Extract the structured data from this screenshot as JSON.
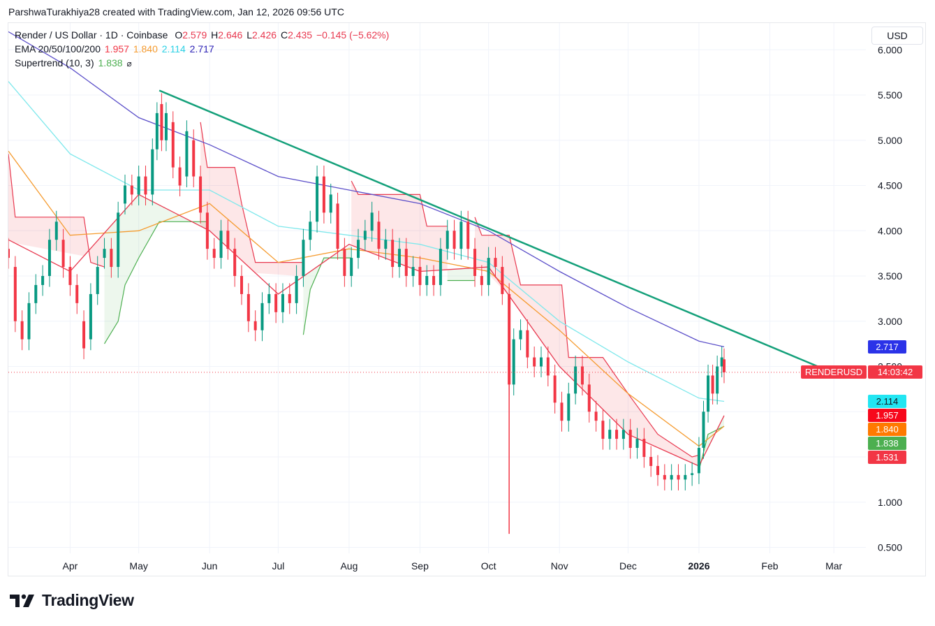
{
  "credit": "ParshwaTurakhiya28 created with TradingView.com, Jan 12, 2026 09:56 UTC",
  "legend": {
    "symbol": "Render / US Dollar · 1D · Coinbase",
    "o_label": "O",
    "o_value": "2.579",
    "h_label": "H",
    "h_value": "2.646",
    "l_label": "L",
    "l_value": "2.426",
    "c_label": "C",
    "c_value": "2.435",
    "change": "−0.145 (−5.62%)",
    "ema_label": "EMA 20/50/100/200",
    "ema20": "1.957",
    "ema50": "1.840",
    "ema100": "2.114",
    "ema200": "2.717",
    "supertrend_label": "Supertrend (10, 3)",
    "supertrend_value": "1.838",
    "supertrend_icon": "circle-slash-icon"
  },
  "currency_button": "USD",
  "price_tags": {
    "ema200": "2.717",
    "symbol": "RENDERUSD",
    "countdown": "14:03:42",
    "ema100": "2.114",
    "ema20": "1.957",
    "ema50": "1.840",
    "supertrend": "1.838",
    "supertrend_down": "1.531"
  },
  "colors": {
    "up": "#089981",
    "down": "#f23645",
    "ema20": "#e8384f",
    "ema50": "#f59b2f",
    "ema100": "#7fe8ec",
    "ema200": "#5b4fc9",
    "trendline": "#14a07a",
    "st_up": "#4caf50",
    "st_down": "#e8384f",
    "tag_ema200": "#2b33e8",
    "tag_cyan": "#22e6f2",
    "tag_red": "#f7081c",
    "tag_orange": "#ff7a00",
    "tag_green": "#4caf50",
    "tag_st_down": "#f23645"
  },
  "brand": "TradingView",
  "chart_data": {
    "type": "candlestick",
    "title": "Render / US Dollar · 1D · Coinbase",
    "x_ticks": [
      "Apr",
      "May",
      "Jun",
      "Jul",
      "Aug",
      "Sep",
      "Oct",
      "Nov",
      "Dec",
      "2026",
      "Feb",
      "Mar"
    ],
    "y_ticks": [
      "0.500",
      "1.000",
      "1.500",
      "2.000",
      "2.500",
      "3.000",
      "3.500",
      "4.000",
      "4.500",
      "5.000",
      "5.500",
      "6.000"
    ],
    "ylim": [
      0.5,
      6.0
    ],
    "last_price": 2.435,
    "grid": true,
    "x_start": "2025-03-05",
    "x_end": "2026-03-15",
    "candles": [
      [
        "2025-03-05",
        3.8,
        3.7
      ],
      [
        "2025-03-08",
        3.6,
        3.0
      ],
      [
        "2025-03-11",
        3.0,
        2.8
      ],
      [
        "2025-03-14",
        2.8,
        3.2
      ],
      [
        "2025-03-17",
        3.2,
        3.4
      ],
      [
        "2025-03-20",
        3.4,
        3.5
      ],
      [
        "2025-03-23",
        3.5,
        3.9
      ],
      [
        "2025-03-26",
        3.9,
        4.1
      ],
      [
        "2025-03-29",
        3.9,
        3.6
      ],
      [
        "2025-04-01",
        3.6,
        3.4
      ],
      [
        "2025-04-04",
        3.4,
        3.2
      ],
      [
        "2025-04-07",
        3.0,
        2.7
      ],
      [
        "2025-04-10",
        2.8,
        3.3
      ],
      [
        "2025-04-13",
        3.3,
        3.6
      ],
      [
        "2025-04-16",
        3.7,
        3.8
      ],
      [
        "2025-04-19",
        3.8,
        3.6
      ],
      [
        "2025-04-22",
        3.6,
        4.2
      ],
      [
        "2025-04-25",
        4.3,
        4.5
      ],
      [
        "2025-04-28",
        4.5,
        4.4
      ],
      [
        "2025-05-01",
        4.4,
        4.6
      ],
      [
        "2025-05-04",
        4.6,
        4.4
      ],
      [
        "2025-05-07",
        4.4,
        4.9
      ],
      [
        "2025-05-09",
        4.9,
        5.3
      ],
      [
        "2025-05-11",
        5.4,
        5.0
      ],
      [
        "2025-05-13",
        5.0,
        5.3
      ],
      [
        "2025-05-16",
        5.2,
        4.7
      ],
      [
        "2025-05-19",
        4.7,
        4.5
      ],
      [
        "2025-05-22",
        4.6,
        5.1
      ],
      [
        "2025-05-25",
        5.0,
        4.6
      ],
      [
        "2025-05-28",
        4.6,
        4.2
      ],
      [
        "2025-05-31",
        4.2,
        3.8
      ],
      [
        "2025-06-03",
        3.8,
        3.7
      ],
      [
        "2025-06-06",
        3.7,
        4.0
      ],
      [
        "2025-06-09",
        4.0,
        3.8
      ],
      [
        "2025-06-12",
        3.8,
        3.5
      ],
      [
        "2025-06-15",
        3.5,
        3.3
      ],
      [
        "2025-06-18",
        3.3,
        3.0
      ],
      [
        "2025-06-21",
        3.0,
        2.9
      ],
      [
        "2025-06-24",
        2.9,
        3.2
      ],
      [
        "2025-06-27",
        3.2,
        3.3
      ],
      [
        "2025-06-30",
        3.3,
        3.1
      ],
      [
        "2025-07-03",
        3.1,
        3.3
      ],
      [
        "2025-07-06",
        3.3,
        3.2
      ],
      [
        "2025-07-09",
        3.2,
        3.5
      ],
      [
        "2025-07-12",
        3.5,
        3.9
      ],
      [
        "2025-07-15",
        3.9,
        4.1
      ],
      [
        "2025-07-18",
        4.1,
        4.6
      ],
      [
        "2025-07-21",
        4.6,
        4.2
      ],
      [
        "2025-07-24",
        4.2,
        4.4
      ],
      [
        "2025-07-27",
        4.3,
        3.8
      ],
      [
        "2025-07-30",
        3.8,
        3.5
      ],
      [
        "2025-08-02",
        3.5,
        3.7
      ],
      [
        "2025-08-05",
        3.7,
        3.9
      ],
      [
        "2025-08-08",
        3.9,
        4.0
      ],
      [
        "2025-08-11",
        4.0,
        4.2
      ],
      [
        "2025-08-14",
        4.1,
        3.8
      ],
      [
        "2025-08-17",
        3.8,
        3.9
      ],
      [
        "2025-08-20",
        3.9,
        3.6
      ],
      [
        "2025-08-23",
        3.6,
        3.8
      ],
      [
        "2025-08-26",
        3.8,
        3.5
      ],
      [
        "2025-08-29",
        3.5,
        3.6
      ],
      [
        "2025-09-01",
        3.6,
        3.4
      ],
      [
        "2025-09-04",
        3.4,
        3.5
      ],
      [
        "2025-09-07",
        3.5,
        3.4
      ],
      [
        "2025-09-10",
        3.4,
        3.8
      ],
      [
        "2025-09-13",
        3.8,
        4.0
      ],
      [
        "2025-09-16",
        4.0,
        3.8
      ],
      [
        "2025-09-19",
        3.8,
        4.1
      ],
      [
        "2025-09-22",
        4.1,
        3.8
      ],
      [
        "2025-09-25",
        3.8,
        3.5
      ],
      [
        "2025-09-28",
        3.5,
        3.4
      ],
      [
        "2025-10-01",
        3.4,
        3.7
      ],
      [
        "2025-10-04",
        3.7,
        3.6
      ],
      [
        "2025-10-07",
        3.6,
        3.3
      ],
      [
        "2025-10-10",
        3.3,
        2.3
      ],
      [
        "2025-10-12",
        2.3,
        2.8
      ],
      [
        "2025-10-15",
        2.8,
        2.9
      ],
      [
        "2025-10-18",
        2.9,
        2.6
      ],
      [
        "2025-10-21",
        2.6,
        2.5
      ],
      [
        "2025-10-24",
        2.5,
        2.6
      ],
      [
        "2025-10-27",
        2.6,
        2.4
      ],
      [
        "2025-10-30",
        2.4,
        2.1
      ],
      [
        "2025-11-02",
        2.1,
        1.9
      ],
      [
        "2025-11-05",
        1.9,
        2.2
      ],
      [
        "2025-11-08",
        2.2,
        2.5
      ],
      [
        "2025-11-11",
        2.5,
        2.3
      ],
      [
        "2025-11-14",
        2.3,
        2.0
      ],
      [
        "2025-11-17",
        2.0,
        1.9
      ],
      [
        "2025-11-20",
        1.9,
        1.7
      ],
      [
        "2025-11-23",
        1.7,
        1.8
      ],
      [
        "2025-11-26",
        1.8,
        1.7
      ],
      [
        "2025-11-29",
        1.7,
        1.8
      ],
      [
        "2025-12-02",
        1.8,
        1.6
      ],
      [
        "2025-12-05",
        1.6,
        1.7
      ],
      [
        "2025-12-08",
        1.7,
        1.5
      ],
      [
        "2025-12-11",
        1.5,
        1.4
      ],
      [
        "2025-12-14",
        1.4,
        1.3
      ],
      [
        "2025-12-17",
        1.3,
        1.25
      ],
      [
        "2025-12-20",
        1.25,
        1.3
      ],
      [
        "2025-12-23",
        1.3,
        1.25
      ],
      [
        "2025-12-26",
        1.25,
        1.3
      ],
      [
        "2025-12-29",
        1.3,
        1.32
      ],
      [
        "2026-01-01",
        1.32,
        1.6
      ],
      [
        "2026-01-03",
        1.6,
        2.0
      ],
      [
        "2026-01-05",
        2.0,
        2.4
      ],
      [
        "2026-01-07",
        2.4,
        2.2
      ],
      [
        "2026-01-09",
        2.2,
        2.5
      ],
      [
        "2026-01-11",
        2.5,
        2.6
      ],
      [
        "2026-01-12",
        2.579,
        2.435
      ]
    ],
    "series": [
      {
        "name": "EMA 200",
        "values": [
          [
            "2025-03-05",
            6.2
          ],
          [
            "2025-04-01",
            5.8
          ],
          [
            "2025-05-01",
            5.25
          ],
          [
            "2025-06-01",
            4.95
          ],
          [
            "2025-07-01",
            4.6
          ],
          [
            "2025-08-01",
            4.45
          ],
          [
            "2025-09-01",
            4.3
          ],
          [
            "2025-10-01",
            4.0
          ],
          [
            "2025-11-01",
            3.55
          ],
          [
            "2025-12-01",
            3.15
          ],
          [
            "2026-01-01",
            2.78
          ],
          [
            "2026-01-12",
            2.717
          ]
        ]
      },
      {
        "name": "EMA 100",
        "values": [
          [
            "2025-03-05",
            5.65
          ],
          [
            "2025-04-01",
            4.85
          ],
          [
            "2025-05-01",
            4.45
          ],
          [
            "2025-06-01",
            4.45
          ],
          [
            "2025-07-01",
            4.05
          ],
          [
            "2025-08-01",
            3.95
          ],
          [
            "2025-09-01",
            3.85
          ],
          [
            "2025-10-01",
            3.65
          ],
          [
            "2025-11-01",
            3.0
          ],
          [
            "2025-12-01",
            2.55
          ],
          [
            "2026-01-01",
            2.15
          ],
          [
            "2026-01-12",
            2.114
          ]
        ]
      },
      {
        "name": "EMA 50",
        "values": [
          [
            "2025-03-05",
            4.88
          ],
          [
            "2025-04-01",
            3.95
          ],
          [
            "2025-05-01",
            4.0
          ],
          [
            "2025-06-01",
            4.3
          ],
          [
            "2025-07-01",
            3.65
          ],
          [
            "2025-08-01",
            3.8
          ],
          [
            "2025-09-01",
            3.7
          ],
          [
            "2025-10-01",
            3.55
          ],
          [
            "2025-11-01",
            2.9
          ],
          [
            "2025-12-01",
            2.2
          ],
          [
            "2026-01-01",
            1.62
          ],
          [
            "2026-01-12",
            1.84
          ]
        ]
      },
      {
        "name": "EMA 20",
        "values": [
          [
            "2025-03-05",
            3.9
          ],
          [
            "2025-04-01",
            3.55
          ],
          [
            "2025-05-01",
            4.4
          ],
          [
            "2025-06-01",
            4.0
          ],
          [
            "2025-07-01",
            3.3
          ],
          [
            "2025-08-01",
            3.85
          ],
          [
            "2025-09-01",
            3.55
          ],
          [
            "2025-10-01",
            3.6
          ],
          [
            "2025-11-01",
            2.5
          ],
          [
            "2025-12-01",
            1.75
          ],
          [
            "2026-01-01",
            1.4
          ],
          [
            "2026-01-12",
            1.957
          ]
        ]
      }
    ],
    "supertrend": [
      {
        "dir": "down",
        "values": [
          [
            "2025-03-05",
            4.85
          ],
          [
            "2025-03-08",
            4.15
          ],
          [
            "2025-04-07",
            4.15
          ],
          [
            "2025-04-10",
            3.65
          ],
          [
            "2025-04-16",
            3.6
          ]
        ]
      },
      {
        "dir": "up",
        "values": [
          [
            "2025-04-16",
            2.75
          ],
          [
            "2025-04-22",
            3.0
          ],
          [
            "2025-04-25",
            3.4
          ],
          [
            "2025-05-01",
            3.7
          ],
          [
            "2025-05-10",
            4.1
          ],
          [
            "2025-05-31",
            4.1
          ]
        ]
      },
      {
        "dir": "down",
        "values": [
          [
            "2025-05-28",
            5.2
          ],
          [
            "2025-05-31",
            4.7
          ],
          [
            "2025-06-12",
            4.7
          ],
          [
            "2025-06-15",
            4.3
          ],
          [
            "2025-06-21",
            3.65
          ],
          [
            "2025-07-12",
            3.65
          ]
        ]
      },
      {
        "dir": "up",
        "values": [
          [
            "2025-07-12",
            2.85
          ],
          [
            "2025-07-15",
            3.35
          ],
          [
            "2025-07-21",
            3.7
          ],
          [
            "2025-08-02",
            3.7
          ]
        ]
      },
      {
        "dir": "down",
        "values": [
          [
            "2025-08-02",
            4.55
          ],
          [
            "2025-08-05",
            4.4
          ],
          [
            "2025-09-01",
            4.4
          ],
          [
            "2025-09-04",
            4.05
          ],
          [
            "2025-09-13",
            4.05
          ]
        ]
      },
      {
        "dir": "up",
        "values": [
          [
            "2025-09-13",
            3.45
          ],
          [
            "2025-09-25",
            3.45
          ]
        ]
      },
      {
        "dir": "down",
        "values": [
          [
            "2025-09-25",
            4.15
          ],
          [
            "2025-09-28",
            3.95
          ],
          [
            "2025-10-10",
            3.95
          ],
          [
            "2025-10-15",
            3.4
          ],
          [
            "2025-11-02",
            3.4
          ],
          [
            "2025-11-05",
            2.6
          ],
          [
            "2025-11-20",
            2.6
          ],
          [
            "2025-12-01",
            2.2
          ],
          [
            "2025-12-14",
            1.75
          ],
          [
            "2025-12-29",
            1.5
          ],
          [
            "2026-01-01",
            1.52
          ]
        ]
      },
      {
        "dir": "up",
        "values": [
          [
            "2026-01-01",
            1.35
          ],
          [
            "2026-01-05",
            1.75
          ],
          [
            "2026-01-12",
            1.838
          ]
        ]
      }
    ],
    "trendline": [
      [
        "2025-05-10",
        5.55
      ],
      [
        "2026-02-22",
        2.5
      ]
    ]
  }
}
